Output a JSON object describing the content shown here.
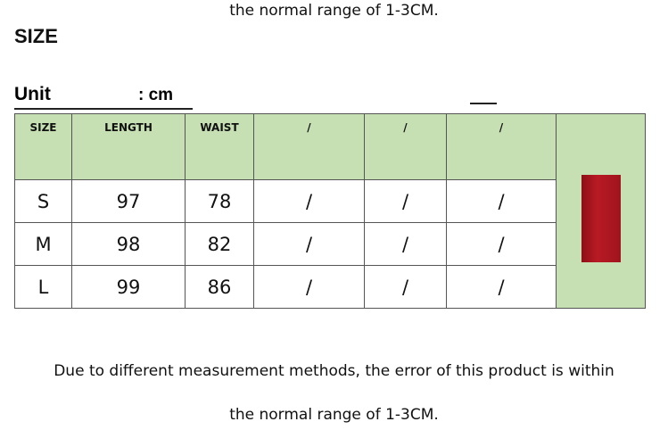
{
  "header": {
    "top_note": "the normal range of 1-3CM.",
    "title": "SIZE",
    "unit_label": "Unit",
    "unit_value": ": cm"
  },
  "table": {
    "header": [
      "SIZE",
      "LENGTH",
      "WAIST",
      "/",
      "/",
      "/"
    ],
    "rows": [
      [
        "S",
        97,
        78,
        "/",
        "/",
        "/"
      ],
      [
        "M",
        98,
        82,
        "/",
        "/",
        "/"
      ],
      [
        "L",
        99,
        86,
        "/",
        "/",
        "/"
      ]
    ]
  },
  "footer": {
    "line1": "Due to different measurement methods, the error of this product is within",
    "line2": "the normal range of 1-3CM."
  }
}
